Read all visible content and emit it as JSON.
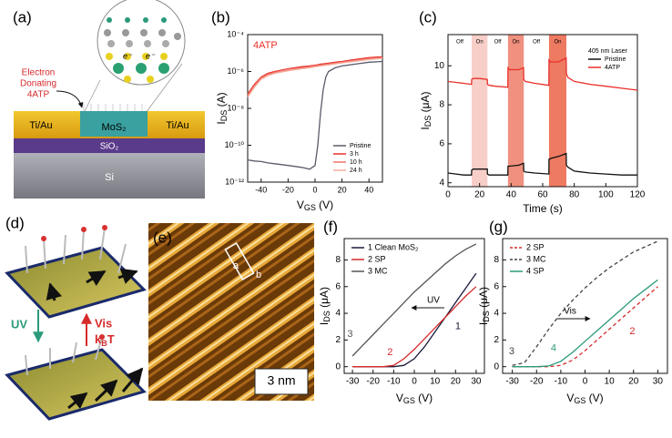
{
  "schematic_a": {
    "label": "(a)",
    "donor": [
      "Electron",
      "Donating",
      "4ATP"
    ],
    "electrons": [
      "e⁻",
      "e⁻"
    ],
    "layers": [
      "Ti/Au",
      "MoS₂",
      "Ti/Au",
      "SiO₂",
      "Si"
    ]
  },
  "schematic_d": {
    "label": "(d)",
    "uv": "UV",
    "vis": "Vis",
    "thermal": [
      "k",
      "B",
      "T"
    ]
  },
  "image_e": {
    "label": "(e)",
    "points": [
      "a",
      "b"
    ],
    "scale": "3 nm"
  },
  "chart_data": [
    {
      "type": "line",
      "panel_label": "(b)",
      "title": "4ATP",
      "title_color": "#e8302a",
      "y_scale": "log",
      "x_label": [
        "V",
        "GS",
        " (V)"
      ],
      "y_label": [
        "I",
        "DS",
        " (A)"
      ],
      "x": [
        -50,
        -45,
        -40,
        -35,
        -30,
        -20,
        -10,
        -4,
        0,
        2,
        4,
        6,
        8,
        10,
        15,
        20,
        30,
        40,
        50
      ],
      "xlim": [
        -50,
        50
      ],
      "xticks": [
        -40,
        -20,
        0,
        20,
        40
      ],
      "ylim": [
        1e-12,
        0.0001
      ],
      "yticks": [
        {
          "value": 1e-12,
          "label": "10⁻¹²"
        },
        {
          "value": 1e-10,
          "label": "10⁻¹⁰"
        },
        {
          "value": 1e-08,
          "label": "10⁻⁸"
        },
        {
          "value": 1e-06,
          "label": "10⁻⁶"
        },
        {
          "value": 0.0001,
          "label": "10⁻⁴"
        }
      ],
      "legend": "lower right",
      "series": [
        {
          "name": "Pristine",
          "color": "#5a5a6a",
          "values": [
            1.6e-11,
            1.4e-11,
            1.3e-11,
            1.1e-11,
            1e-11,
            8e-12,
            6.3e-12,
            5e-12,
            8e-12,
            1e-10,
            5e-09,
            1e-07,
            5e-07,
            1e-06,
            1.6e-06,
            2e-06,
            2.5e-06,
            3.2e-06,
            3.5e-06
          ]
        },
        {
          "name": "3 h",
          "color": "#e8302a",
          "values": [
            6e-08,
            2e-07,
            5e-07,
            8e-07,
            1e-06,
            1.4e-06,
            1.8e-06,
            2e-06,
            2.2e-06,
            2.3e-06,
            2.5e-06,
            2.6e-06,
            2.7e-06,
            2.8e-06,
            3.2e-06,
            3.5e-06,
            4.5e-06,
            5.6e-06,
            6.3e-06
          ]
        },
        {
          "name": "10 h",
          "color": "#ef7566",
          "values": [
            5e-08,
            1.7e-07,
            4.4e-07,
            7e-07,
            9e-07,
            1.3e-06,
            1.6e-06,
            1.8e-06,
            2e-06,
            2.1e-06,
            2.2e-06,
            2.3e-06,
            2.4e-06,
            2.5e-06,
            2.9e-06,
            3.2e-06,
            4e-06,
            5e-06,
            5.7e-06
          ]
        },
        {
          "name": "24 h",
          "color": "#f5aa9c",
          "values": [
            4e-08,
            1.4e-07,
            3.8e-07,
            6e-07,
            8e-07,
            1.1e-06,
            1.4e-06,
            1.6e-06,
            1.8e-06,
            1.9e-06,
            2e-06,
            2.1e-06,
            2.2e-06,
            2.3e-06,
            2.6e-06,
            2.9e-06,
            3.6e-06,
            4.5e-06,
            5.2e-06
          ]
        }
      ]
    },
    {
      "type": "line",
      "panel_label": "(c)",
      "legend_title": "405 nm Laser",
      "x_label": "Time (s)",
      "y_label": [
        "I",
        "DS",
        " (μA)"
      ],
      "x": [
        0,
        5,
        10,
        14.9,
        15,
        16,
        20,
        24.9,
        25,
        26,
        30,
        37.9,
        38,
        39,
        45,
        47.9,
        48,
        49,
        55,
        63.9,
        64,
        65,
        70,
        74.9,
        75,
        76,
        80,
        90,
        100,
        110,
        120
      ],
      "xlim": [
        0,
        120
      ],
      "xticks": [
        0,
        20,
        40,
        60,
        80,
        100,
        120
      ],
      "ylim": [
        3.8,
        11.6
      ],
      "yticks": [
        4,
        6,
        8,
        10
      ],
      "legend": "upper right",
      "regions": [
        {
          "range": [
            15,
            25
          ],
          "color": "#f8cfc8"
        },
        {
          "range": [
            38,
            48
          ],
          "color": "#f0907e"
        },
        {
          "range": [
            64,
            75
          ],
          "color": "#ee7a62"
        }
      ],
      "region_labels": [
        "Off",
        "On",
        "Off",
        "On",
        "Off",
        "On"
      ],
      "series": [
        {
          "name": "Pristine",
          "color": "#111111",
          "values": [
            4.5,
            4.45,
            4.4,
            4.4,
            4.65,
            4.7,
            4.7,
            4.7,
            4.45,
            4.4,
            4.4,
            4.4,
            4.85,
            4.85,
            4.9,
            5.0,
            4.6,
            4.55,
            4.5,
            4.45,
            5.2,
            5.25,
            5.35,
            5.5,
            4.9,
            4.8,
            4.6,
            4.5,
            4.45,
            4.4,
            4.4
          ]
        },
        {
          "name": "4ATP",
          "color": "#e8302a",
          "values": [
            9.2,
            9.15,
            9.1,
            9.05,
            9.3,
            9.35,
            9.35,
            9.3,
            9.05,
            9.0,
            8.95,
            8.9,
            9.9,
            9.8,
            9.8,
            9.9,
            9.3,
            9.2,
            9.1,
            9.0,
            10.3,
            10.2,
            10.2,
            10.4,
            9.6,
            9.4,
            9.2,
            9.05,
            8.95,
            8.85,
            8.75
          ]
        }
      ]
    },
    {
      "type": "line",
      "panel_label": "(f)",
      "annotation": "UV",
      "x_label": [
        "V",
        "GS",
        " (V)"
      ],
      "y_label": [
        "I",
        "DS",
        " (μA)"
      ],
      "x": [
        -30,
        -25,
        -20,
        -15,
        -10,
        -5,
        0,
        5,
        10,
        15,
        20,
        25,
        30
      ],
      "xlim": [
        -34,
        34
      ],
      "xticks": [
        -30,
        -20,
        -10,
        0,
        10,
        20,
        30
      ],
      "ylim": [
        -0.5,
        9.6
      ],
      "yticks": [
        0,
        2,
        4,
        6,
        8
      ],
      "legend": "upper left",
      "series": [
        {
          "name": "1 Clean MoS₂",
          "label": "1",
          "color": "#1a1a3a",
          "values": [
            0,
            0,
            0,
            0,
            0,
            0.1,
            0.6,
            1.5,
            2.6,
            3.7,
            4.8,
            5.9,
            7.0
          ]
        },
        {
          "name": "2 SP",
          "label": "2",
          "color": "#d62a2a",
          "values": [
            0,
            0,
            0,
            0,
            0.1,
            0.6,
            1.3,
            2.1,
            2.9,
            3.7,
            4.5,
            5.3,
            6.0
          ]
        },
        {
          "name": "3 MC",
          "label": "3",
          "color": "#555555",
          "values": [
            0.8,
            1.6,
            2.4,
            3.2,
            4.0,
            4.8,
            5.6,
            6.3,
            7.0,
            7.7,
            8.3,
            8.8,
            9.2
          ]
        }
      ]
    },
    {
      "type": "line",
      "panel_label": "(g)",
      "annotation": "Vis",
      "x_label": [
        "V",
        "GS",
        " (V)"
      ],
      "y_label": [
        "I",
        "DS",
        " (μA)"
      ],
      "x": [
        -30,
        -25,
        -20,
        -15,
        -10,
        -5,
        0,
        5,
        10,
        15,
        20,
        25,
        30
      ],
      "xlim": [
        -34,
        34
      ],
      "xticks": [
        -30,
        -20,
        -10,
        0,
        10,
        20,
        30
      ],
      "ylim": [
        -0.5,
        9.6
      ],
      "yticks": [
        0,
        2,
        4,
        6,
        8
      ],
      "legend": "upper left",
      "series": [
        {
          "name": "2 SP",
          "label": "2",
          "color": "#d62a2a",
          "dash": true,
          "values": [
            0,
            0,
            0,
            0,
            0.1,
            0.5,
            1.2,
            2.0,
            2.8,
            3.6,
            4.4,
            5.2,
            6.0
          ]
        },
        {
          "name": "3 MC",
          "label": "3",
          "color": "#444444",
          "dash": true,
          "values": [
            0.1,
            0.3,
            1.5,
            2.8,
            4.0,
            5.0,
            5.9,
            6.7,
            7.4,
            8.0,
            8.6,
            9.0,
            9.4
          ]
        },
        {
          "name": "4 SP",
          "label": "4",
          "color": "#2a9a7a",
          "values": [
            0,
            0,
            0,
            0.05,
            0.4,
            1.1,
            1.9,
            2.7,
            3.5,
            4.3,
            5.1,
            5.8,
            6.5
          ]
        }
      ]
    }
  ]
}
